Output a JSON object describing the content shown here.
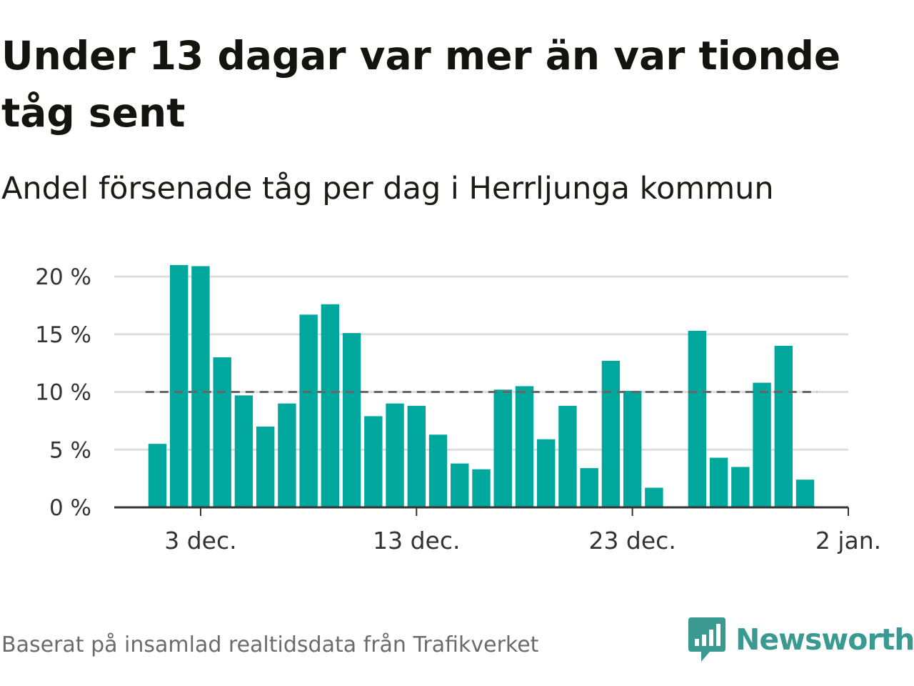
{
  "header": {
    "title": "Under 13 dagar var mer än var tionde tåg sent",
    "subtitle": "Andel försenade tåg per dag i Herrljunga kommun"
  },
  "footer": {
    "source": "Baserat på insamlad realtidsdata från Trafikverket",
    "brand": "Newsworthy",
    "brand_color": "#3a9a91"
  },
  "colors": {
    "bar": "#00a79d",
    "grid": "#dddddd",
    "axis": "#333333",
    "reference_line": "#666666"
  },
  "chart_data": {
    "type": "bar",
    "title": "Under 13 dagar var mer än var tionde tåg sent",
    "subtitle": "Andel försenade tåg per dag i Herrljunga kommun",
    "xlabel": "",
    "ylabel": "",
    "ylim": [
      0,
      20
    ],
    "y_ticks": [
      0,
      5,
      10,
      15,
      20
    ],
    "y_tick_labels": [
      "0 %",
      "5 %",
      "10 %",
      "15 %",
      "20 %"
    ],
    "x_tick_dates": [
      "2023-12-03",
      "2023-12-13",
      "2023-12-23",
      "2024-01-02"
    ],
    "x_tick_labels": [
      "3 dec.",
      "13 dec.",
      "23 dec.",
      "2 jan."
    ],
    "x_range": [
      "2023-11-29",
      "2024-01-02"
    ],
    "reference_line": {
      "value": 10,
      "style": "dashed"
    },
    "grid": true,
    "legend": "none",
    "dates": [
      "2023-12-01",
      "2023-12-02",
      "2023-12-03",
      "2023-12-04",
      "2023-12-05",
      "2023-12-06",
      "2023-12-07",
      "2023-12-08",
      "2023-12-09",
      "2023-12-10",
      "2023-12-11",
      "2023-12-12",
      "2023-12-13",
      "2023-12-14",
      "2023-12-15",
      "2023-12-16",
      "2023-12-17",
      "2023-12-18",
      "2023-12-19",
      "2023-12-20",
      "2023-12-21",
      "2023-12-22",
      "2023-12-23",
      "2023-12-24",
      "2023-12-25",
      "2023-12-26",
      "2023-12-27",
      "2023-12-28",
      "2023-12-29",
      "2023-12-30",
      "2023-12-31"
    ],
    "values": [
      5.5,
      21.0,
      20.9,
      13.0,
      9.7,
      7.0,
      9.0,
      16.7,
      17.6,
      15.1,
      7.9,
      9.0,
      8.8,
      6.3,
      3.8,
      3.3,
      10.2,
      10.5,
      5.9,
      8.8,
      3.4,
      12.7,
      10.1,
      1.7,
      null,
      15.3,
      4.3,
      3.5,
      10.8,
      14.0,
      2.4
    ]
  }
}
